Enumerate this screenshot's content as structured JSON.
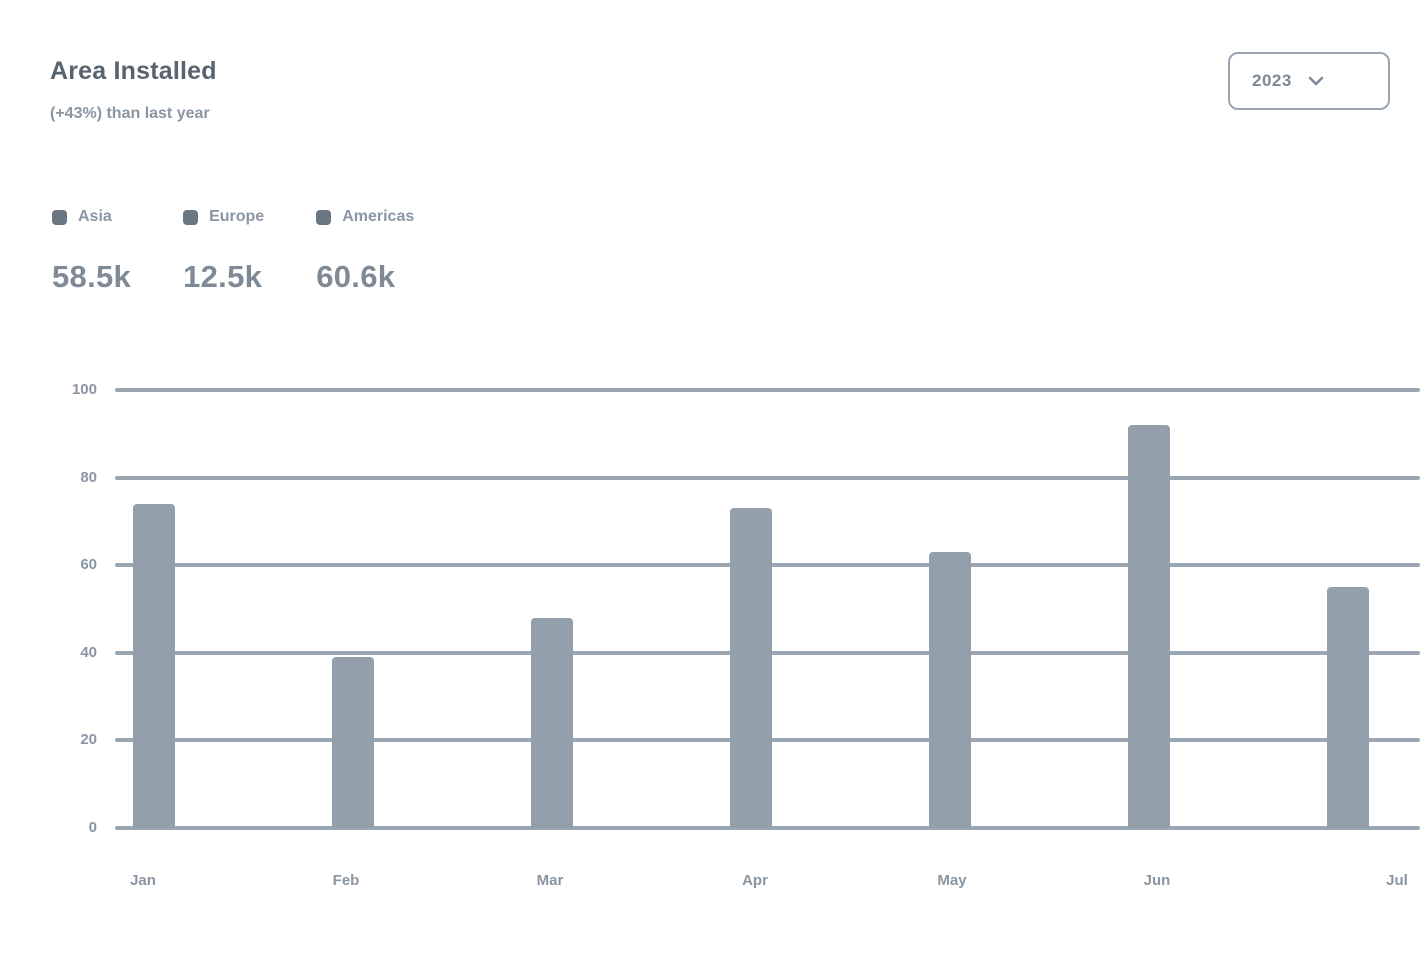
{
  "header": {
    "title": "Area Installed",
    "subtitle": "(+43%) than last year",
    "year_select": {
      "value": "2023",
      "icon": "chevron-down-icon"
    }
  },
  "legend": {
    "items": [
      {
        "icon": "legend-dot-icon",
        "label": "Asia",
        "total": "58.5k"
      },
      {
        "icon": "legend-dot-icon",
        "label": "Europe",
        "total": "12.5k"
      },
      {
        "icon": "legend-dot-icon",
        "label": "Americas",
        "total": "60.6k"
      }
    ]
  },
  "chart_data": {
    "type": "bar",
    "title": "Area Installed",
    "categories": [
      "Jan",
      "Feb",
      "Mar",
      "Apr",
      "May",
      "Jun",
      "Jul"
    ],
    "values": [
      74,
      39,
      48,
      73,
      63,
      92,
      55
    ],
    "xlabel": "",
    "ylabel": "",
    "ylim": [
      0,
      100
    ],
    "yticks": [
      0,
      20,
      40,
      60,
      80,
      100
    ],
    "grid": true,
    "legend_entries": [
      "Asia",
      "Europe",
      "Americas"
    ],
    "legend_totals": [
      "58.5k",
      "12.5k",
      "60.6k"
    ],
    "legend_position": "top-left"
  },
  "colors": {
    "bar": "#93A0AC",
    "grid": "#9AA7B3",
    "text_strong": "#57636F",
    "text_mid": "#7E8A95",
    "text_muted": "#8A96A2",
    "legend_dot": "#6A7682",
    "border": "#99A5B1",
    "card_bg": "#FFFFFF"
  }
}
